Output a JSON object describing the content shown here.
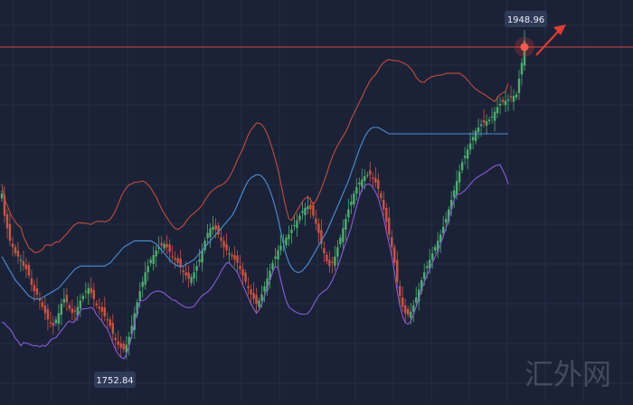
{
  "chart_data": {
    "type": "line",
    "title": "",
    "xlabel": "",
    "ylabel": "",
    "ylim": [
      1720,
      1975
    ],
    "price_series": "candlestick",
    "indicator": "bollinger_bands",
    "annotations": {
      "high_value": 1948.96,
      "high_label": "1948.96",
      "low_value": 1752.84,
      "low_label": "1752.84"
    },
    "series": [
      {
        "role": "price",
        "values": [
          1852,
          1838,
          1830,
          1822,
          1818,
          1814,
          1812,
          1810,
          1806,
          1804,
          1800,
          1794,
          1790,
          1788,
          1784,
          1780,
          1776,
          1772,
          1770,
          1768,
          1772,
          1776,
          1782,
          1785,
          1783,
          1779,
          1776,
          1777,
          1780,
          1784,
          1787,
          1790,
          1792,
          1789,
          1785,
          1781,
          1779,
          1777,
          1774,
          1772,
          1768,
          1763,
          1759,
          1756,
          1754,
          1753,
          1756,
          1761,
          1768,
          1776,
          1783,
          1790,
          1796,
          1802,
          1806,
          1810,
          1813,
          1816,
          1818,
          1819,
          1820,
          1818,
          1815,
          1812,
          1810,
          1808,
          1805,
          1802,
          1800,
          1798,
          1799,
          1802,
          1806,
          1810,
          1816,
          1822,
          1827,
          1830,
          1831,
          1829,
          1826,
          1822,
          1818,
          1816,
          1814,
          1812,
          1810,
          1808,
          1804,
          1800,
          1796,
          1792,
          1788,
          1785,
          1782,
          1784,
          1788,
          1793,
          1798,
          1803,
          1808,
          1812,
          1816,
          1819,
          1822,
          1824,
          1826,
          1829,
          1832,
          1835,
          1838,
          1841,
          1843,
          1844,
          1842,
          1838,
          1833,
          1827,
          1820,
          1814,
          1809,
          1806,
          1808,
          1812,
          1818,
          1824,
          1830,
          1836,
          1842,
          1847,
          1852,
          1856,
          1859,
          1861,
          1863,
          1864,
          1864,
          1862,
          1859,
          1855,
          1849,
          1842,
          1834,
          1826,
          1818,
          1808,
          1796,
          1787,
          1780,
          1776,
          1775,
          1777,
          1781,
          1786,
          1791,
          1797,
          1802,
          1806,
          1810,
          1814,
          1818,
          1822,
          1826,
          1831,
          1836,
          1842,
          1848,
          1854,
          1860,
          1866,
          1872,
          1876,
          1880,
          1884,
          1888,
          1892,
          1894,
          1896,
          1897,
          1898,
          1899,
          1901,
          1904,
          1907,
          1909,
          1910,
          1911,
          1912,
          1913,
          1914,
          1915,
          1925,
          1935,
          1949
        ]
      },
      {
        "role": "middle-band",
        "values": [
          1812,
          1809,
          1806,
          1803,
          1800,
          1797,
          1795,
          1793,
          1791,
          1789,
          1787,
          1786,
          1785,
          1785,
          1785,
          1786,
          1787,
          1788,
          1789,
          1790,
          1791,
          1792,
          1794,
          1796,
          1798,
          1800,
          1802,
          1804,
          1805,
          1806,
          1806,
          1806,
          1806,
          1806,
          1806,
          1806,
          1806,
          1806,
          1806,
          1807,
          1808,
          1810,
          1812,
          1814,
          1816,
          1818,
          1819,
          1820,
          1821,
          1822,
          1822,
          1822,
          1822,
          1822,
          1822,
          1822,
          1821,
          1820,
          1818,
          1816,
          1814,
          1812,
          1810,
          1808,
          1807,
          1806,
          1806,
          1806,
          1807,
          1808,
          1809,
          1810,
          1812,
          1814,
          1816,
          1818,
          1820,
          1822,
          1824,
          1826,
          1828,
          1830,
          1832,
          1834,
          1836,
          1838,
          1841,
          1845,
          1849,
          1853,
          1857,
          1860,
          1862,
          1863,
          1864,
          1864,
          1863,
          1861,
          1858,
          1854,
          1849,
          1843,
          1836,
          1828,
          1820,
          1813,
          1808,
          1805,
          1803,
          1802,
          1802,
          1803,
          1805,
          1807,
          1810,
          1813,
          1816,
          1819,
          1822,
          1825,
          1828,
          1832,
          1836,
          1840,
          1844,
          1848,
          1852,
          1856,
          1860,
          1865,
          1870,
          1875,
          1880,
          1884,
          1888,
          1891,
          1893,
          1894,
          1894,
          1894,
          1893,
          1892,
          1891,
          1890,
          1890,
          1890,
          1890,
          1890,
          1890,
          1890,
          1890,
          1890,
          1890,
          1890,
          1890,
          1890,
          1890,
          1890,
          1890,
          1890,
          1890,
          1890,
          1890,
          1890,
          1890,
          1890,
          1890,
          1890,
          1890,
          1890,
          1890,
          1890,
          1890,
          1890,
          1890,
          1890,
          1890,
          1890,
          1890,
          1890,
          1890,
          1890,
          1890,
          1890,
          1890,
          1890,
          1890,
          1890
        ]
      }
    ]
  },
  "watermark": {
    "text": "汇外网"
  },
  "colors": {
    "background": "#1b2237",
    "grid": "#252d44",
    "up_candle": "#4cae6e",
    "down_candle": "#d0523f",
    "upper_band": "#c34b3b",
    "middle_band": "#4b8fd8",
    "lower_band": "#8a5cd8",
    "high_line": "#d14a3d",
    "arrow": "#e03c34",
    "label_bg": "#2f3a57",
    "label_text": "#e8ecf5"
  }
}
